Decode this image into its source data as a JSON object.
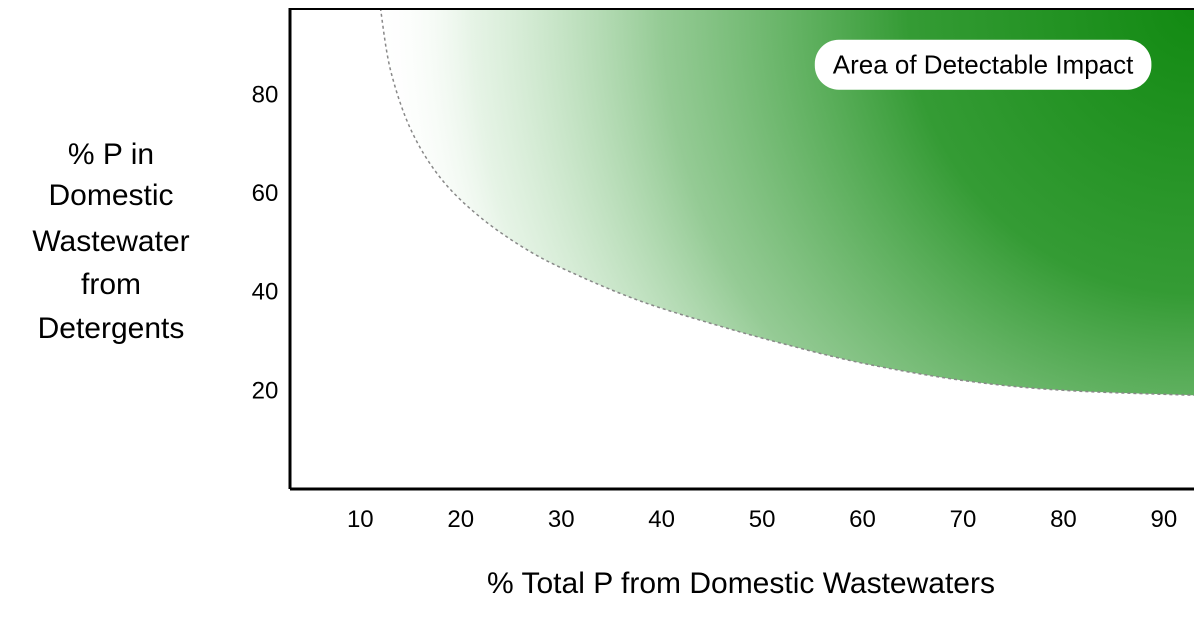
{
  "chart_data": {
    "type": "area",
    "title": "",
    "xlabel": "% Total P from Domestic Wastewaters",
    "ylabel_lines": [
      "% P in",
      "Domestic",
      "Wastewater",
      "from",
      "Detergents"
    ],
    "x_ticks": [
      10,
      20,
      30,
      40,
      50,
      60,
      70,
      80,
      90
    ],
    "y_ticks": [
      20,
      40,
      60,
      80
    ],
    "xlim": [
      3,
      93
    ],
    "ylim": [
      0,
      97.5
    ],
    "grid": false,
    "boundary": {
      "name": "",
      "style": "dotted",
      "x": [
        12,
        13,
        15,
        18,
        22,
        27,
        32,
        38,
        45,
        52,
        60,
        70,
        80,
        93
      ],
      "y": [
        97.5,
        85,
        73,
        63,
        55,
        48,
        43,
        38,
        33.5,
        29.5,
        25.5,
        22,
        20,
        19
      ]
    },
    "colors": {
      "fill": "#1e8c1e",
      "boundary": "#888888",
      "axis": "#000000"
    },
    "annotations": [
      {
        "text": "Area of Detectable Impact",
        "x": 72,
        "y": 86
      }
    ]
  }
}
